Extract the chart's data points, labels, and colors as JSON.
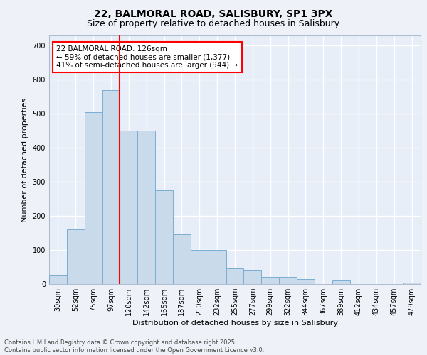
{
  "title_line1": "22, BALMORAL ROAD, SALISBURY, SP1 3PX",
  "title_line2": "Size of property relative to detached houses in Salisbury",
  "xlabel": "Distribution of detached houses by size in Salisbury",
  "ylabel": "Number of detached properties",
  "categories": [
    "30sqm",
    "52sqm",
    "75sqm",
    "97sqm",
    "120sqm",
    "142sqm",
    "165sqm",
    "187sqm",
    "210sqm",
    "232sqm",
    "255sqm",
    "277sqm",
    "299sqm",
    "322sqm",
    "344sqm",
    "367sqm",
    "389sqm",
    "412sqm",
    "434sqm",
    "457sqm",
    "479sqm"
  ],
  "values": [
    25,
    160,
    505,
    570,
    450,
    450,
    275,
    145,
    100,
    100,
    45,
    42,
    20,
    20,
    15,
    0,
    10,
    0,
    0,
    0,
    5
  ],
  "bar_color": "#c9daea",
  "bar_edge_color": "#7baed4",
  "vline_x": 3.5,
  "vline_color": "red",
  "annotation_text": "22 BALMORAL ROAD: 126sqm\n← 59% of detached houses are smaller (1,377)\n41% of semi-detached houses are larger (944) →",
  "ylim": [
    0,
    730
  ],
  "yticks": [
    0,
    100,
    200,
    300,
    400,
    500,
    600,
    700
  ],
  "footer_text": "Contains HM Land Registry data © Crown copyright and database right 2025.\nContains public sector information licensed under the Open Government Licence v3.0.",
  "bg_color": "#eef2f8",
  "plot_bg_color": "#e8eef8",
  "grid_color": "#ffffff",
  "title_fontsize": 10,
  "subtitle_fontsize": 9,
  "axis_label_fontsize": 8,
  "tick_fontsize": 7,
  "annotation_fontsize": 7.5,
  "footer_fontsize": 6
}
